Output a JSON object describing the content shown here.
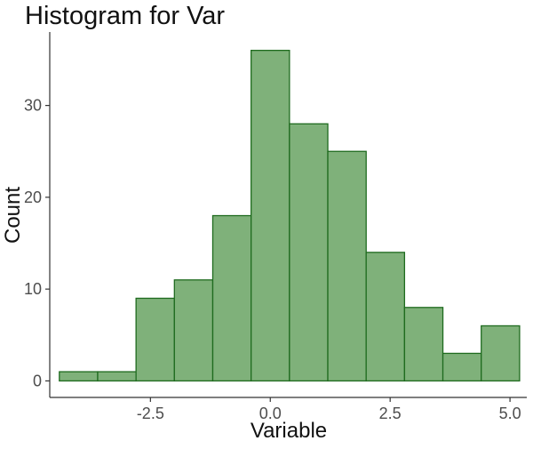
{
  "chart_data": {
    "type": "bar",
    "title": "Histogram for Var",
    "xlabel": "Variable",
    "ylabel": "Count",
    "xlim": [
      -4.6,
      5.35
    ],
    "ylim": [
      -1.8,
      38
    ],
    "x_ticks": [
      -2.5,
      0.0,
      2.5,
      5.0
    ],
    "x_tick_labels": [
      "-2.5",
      "0.0",
      "2.5",
      "5.0"
    ],
    "y_ticks": [
      0,
      10,
      20,
      30
    ],
    "y_tick_labels": [
      "0",
      "10",
      "20",
      "30"
    ],
    "bin_width": 0.8,
    "bins": [
      {
        "x0": -4.4,
        "x1": -3.6,
        "count": 1
      },
      {
        "x0": -3.6,
        "x1": -2.8,
        "count": 1
      },
      {
        "x0": -2.8,
        "x1": -2.0,
        "count": 9
      },
      {
        "x0": -2.0,
        "x1": -1.2,
        "count": 11
      },
      {
        "x0": -1.2,
        "x1": -0.4,
        "count": 18
      },
      {
        "x0": -0.4,
        "x1": 0.4,
        "count": 36
      },
      {
        "x0": 0.4,
        "x1": 1.2,
        "count": 28
      },
      {
        "x0": 1.2,
        "x1": 2.0,
        "count": 25
      },
      {
        "x0": 2.0,
        "x1": 2.8,
        "count": 14
      },
      {
        "x0": 2.8,
        "x1": 3.6,
        "count": 8
      },
      {
        "x0": 3.6,
        "x1": 4.4,
        "count": 3
      },
      {
        "x0": 4.4,
        "x1": 5.2,
        "count": 6
      }
    ],
    "grid": false,
    "colors": {
      "bar_fill": "#7fb17a",
      "bar_stroke": "#1f6b1f",
      "axis": "#333333",
      "tick_label": "#4d4d4d",
      "text": "#111111"
    }
  }
}
